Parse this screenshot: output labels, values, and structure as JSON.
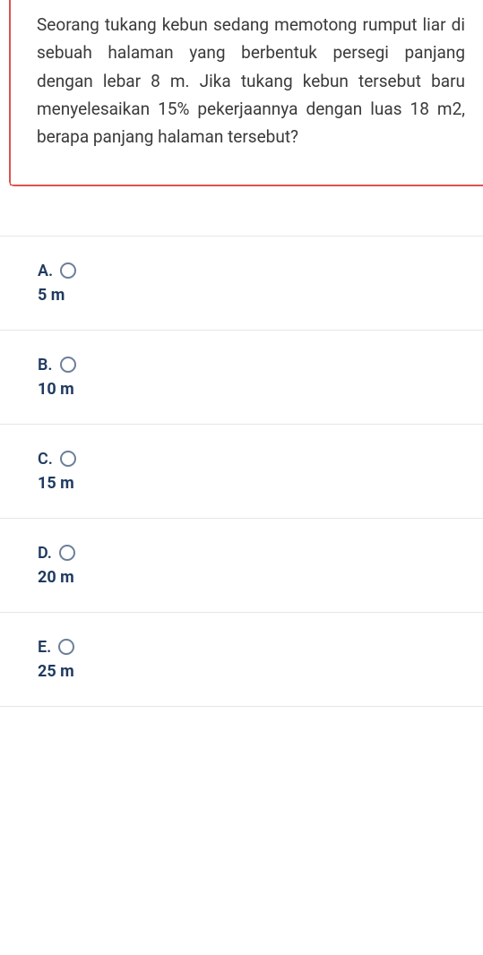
{
  "question": {
    "text": "Seorang tukang kebun sedang memotong rumput liar di sebuah halaman yang berbentuk persegi panjang dengan lebar 8 m. Jika tukang kebun tersebut baru menyelesaikan 15% pekerjaannya dengan luas 18 m2, berapa panjang halaman tersebut?",
    "text_color": "#3a3a3a",
    "border_color": "#d9534f",
    "font_size": 19
  },
  "options": [
    {
      "letter": "A.",
      "value": "5 m"
    },
    {
      "letter": "B.",
      "value": "10 m"
    },
    {
      "letter": "C.",
      "value": "15 m"
    },
    {
      "letter": "D.",
      "value": "20 m"
    },
    {
      "letter": "E.",
      "value": "25 m"
    }
  ],
  "styles": {
    "option_text_color": "#1f3a5f",
    "divider_color": "#e3e6ea",
    "radio_border_color": "#6b7f99",
    "option_font_size": 18
  }
}
